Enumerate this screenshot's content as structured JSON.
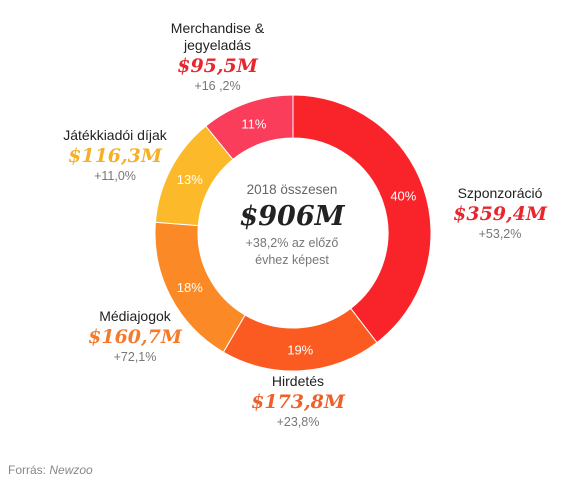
{
  "chart_data": {
    "type": "pie",
    "variant": "donut",
    "center": {
      "label": "2018 összesen",
      "total": "$906M",
      "note_line1": "+38,2% az előző",
      "note_line2": "évhez képest"
    },
    "slices": [
      {
        "name": "Szponzoráció",
        "value": 40,
        "label": "40%",
        "amount": "$359,4M",
        "change": "+53,2%",
        "color": "#f8242a"
      },
      {
        "name": "Hirdetés",
        "value": 19,
        "label": "19%",
        "amount": "$173,8M",
        "change": "+23,8%",
        "color": "#fb5a20"
      },
      {
        "name": "Médiajogok",
        "value": 18,
        "label": "18%",
        "amount": "$160,7M",
        "change": "+72,1%",
        "color": "#fb8a26"
      },
      {
        "name": "Játékkiadói díjak",
        "value": 13,
        "label": "13%",
        "amount": "$116,3M",
        "change": "+11,0%",
        "color": "#fcba2a"
      },
      {
        "name_line1": "Merchandise &",
        "name_line2": "jegyeladás",
        "value": 11,
        "label": "11%",
        "amount": "$95,5M",
        "change": "+16 ,2%",
        "color": "#fb3d5c"
      }
    ]
  },
  "source": {
    "prefix": "Forrás:",
    "name": "Newzoo"
  },
  "colors": {
    "value_sponsor": "#e8262c",
    "value_ads": "#f0602a",
    "value_media": "#f57a2c",
    "value_publisher": "#f5b028",
    "value_merch": "#e8262c"
  }
}
